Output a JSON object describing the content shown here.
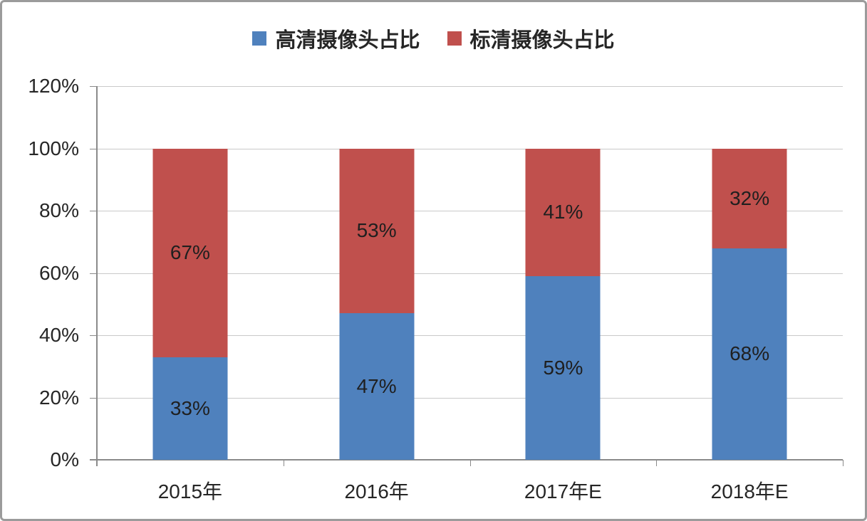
{
  "chart_data": {
    "type": "bar",
    "stacked": true,
    "title": "",
    "categories": [
      "2015年",
      "2016年",
      "2017年E",
      "2018年E"
    ],
    "series": [
      {
        "name": "高清摄像头占比",
        "color": "#4f81bd",
        "values": [
          33,
          47,
          59,
          68
        ],
        "data_labels": [
          "33%",
          "47%",
          "59%",
          "68%"
        ]
      },
      {
        "name": "标清摄像头占比",
        "color": "#c0504d",
        "values": [
          67,
          53,
          41,
          32
        ],
        "data_labels": [
          "67%",
          "53%",
          "41%",
          "32%"
        ]
      }
    ],
    "xlabel": "",
    "ylabel": "",
    "ylim": [
      0,
      120
    ],
    "yticks": [
      "0%",
      "20%",
      "40%",
      "60%",
      "80%",
      "100%",
      "120%"
    ],
    "grid": true,
    "legend_position": "top"
  }
}
